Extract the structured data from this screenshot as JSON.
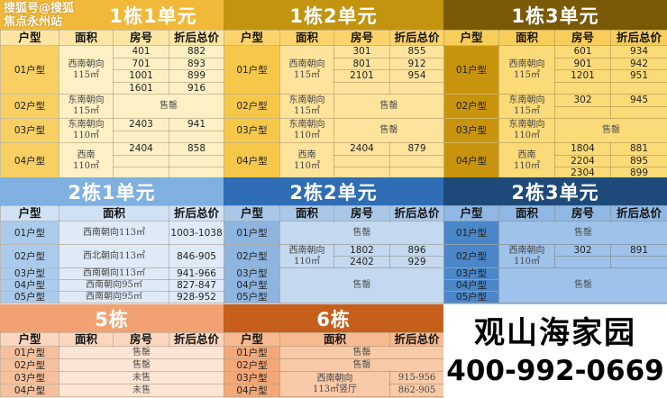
{
  "watermark": "搜狐号@搜狐焦点永州站",
  "brand": {
    "name": "观山海家园",
    "phone": "400-992-0669"
  },
  "panels": [
    {
      "title": "1栋1单元",
      "colors": {
        "title": "#f0b93a",
        "head": "#fce6a4",
        "type": "#f7cf63",
        "body": "#fdf0c4"
      },
      "headers": [
        "户型",
        "面积",
        "房号",
        "折后总价"
      ],
      "groups": [
        {
          "type": "01户型",
          "area": "西南朝向\n115㎡",
          "rooms": [
            [
              "401",
              "882"
            ],
            [
              "701",
              "893"
            ],
            [
              "1001",
              "899"
            ],
            [
              "1601",
              "916"
            ]
          ]
        },
        {
          "type": "02户型",
          "area": "东南朝向\n115㎡",
          "status": "售罄"
        },
        {
          "type": "03户型",
          "area": "东南朝向\n110㎡",
          "rooms": [
            [
              "2403",
              "941"
            ]
          ]
        },
        {
          "type": "04户型",
          "area": "西南\n110㎡",
          "rooms": [
            [
              "2404",
              "858"
            ]
          ]
        }
      ]
    },
    {
      "title": "1栋2单元",
      "colors": {
        "title": "#c39410",
        "head": "#fbd36b",
        "type": "#f6c84a",
        "body": "#fde39c"
      },
      "headers": [
        "户型",
        "面积",
        "房号",
        "折后总价"
      ],
      "groups": [
        {
          "type": "01户型",
          "area": "西南朝向\n115㎡",
          "rooms": [
            [
              "301",
              "855"
            ],
            [
              "801",
              "912"
            ],
            [
              "2101",
              "954"
            ]
          ]
        },
        {
          "type": "02户型",
          "area": "东南朝向\n115㎡",
          "status": "售罄"
        },
        {
          "type": "03户型",
          "area": "东南朝向\n110㎡",
          "status": "售罄"
        },
        {
          "type": "04户型",
          "area": "西南\n110㎡",
          "rooms": [
            [
              "2404",
              "879"
            ]
          ]
        }
      ]
    },
    {
      "title": "1栋3单元",
      "colors": {
        "title": "#7a5907",
        "head": "#f7cd5b",
        "type": "#c8940e",
        "body": "#fbda78"
      },
      "headers": [
        "户型",
        "面积",
        "房号",
        "折后总价"
      ],
      "groups": [
        {
          "type": "01户型",
          "area": "西南朝向\n115㎡",
          "rooms": [
            [
              "601",
              "934"
            ],
            [
              "901",
              "942"
            ],
            [
              "1201",
              "951"
            ]
          ]
        },
        {
          "type": "02户型",
          "area": "东南朝向\n115㎡",
          "rooms": [
            [
              "302",
              "945"
            ]
          ]
        },
        {
          "type": "03户型",
          "area": "东南朝向\n110㎡",
          "status": "售罄"
        },
        {
          "type": "04户型",
          "area": "西南\n110㎡",
          "rooms": [
            [
              "1804",
              "881"
            ],
            [
              "2204",
              "895"
            ],
            [
              "2304",
              "899"
            ]
          ]
        }
      ]
    },
    {
      "title": "2栋1单元",
      "colors": {
        "title": "#80b0e0",
        "head": "#d0e1f4",
        "type": "#abcbec",
        "body": "#dfeaf7"
      },
      "headers": [
        "户型",
        "面积",
        "折后总价"
      ],
      "groups": [
        {
          "type": "01户型",
          "area": "西南朝向113㎡",
          "price": "1003-1038"
        },
        {
          "type": "02户型",
          "area": "西北朝向113㎡",
          "price": "846-905"
        },
        {
          "type": "03户型",
          "area": "西南朝向113㎡",
          "price": "941-966"
        },
        {
          "type": "04户型",
          "area": "西南朝向95㎡",
          "price": "827-847"
        },
        {
          "type": "05户型",
          "area": "西南朝向95㎡",
          "price": "928-952"
        }
      ]
    },
    {
      "title": "2栋2单元",
      "colors": {
        "title": "#2f6db4",
        "head": "#a9c8e8",
        "type": "#8db5e0",
        "body": "#c4d9ef"
      },
      "headers": [
        "户型",
        "面积",
        "房号",
        "折后总价"
      ],
      "groups": [
        {
          "type": "01户型",
          "status": "售罄"
        },
        {
          "type": "02户型",
          "area": "西南朝向\n110㎡",
          "rooms": [
            [
              "1802",
              "896"
            ],
            [
              "2402",
              "929"
            ]
          ]
        },
        {
          "types": [
            "03户型",
            "04户型",
            "05户型"
          ],
          "status": "售罄"
        }
      ]
    },
    {
      "title": "2栋3单元",
      "colors": {
        "title": "#1e4a7a",
        "head": "#8fb8e4",
        "type": "#4a86c8",
        "body": "#9ec2e9"
      },
      "headers": [
        "户型",
        "面积",
        "房号",
        "折后总价"
      ],
      "groups": [
        {
          "type": "01户型",
          "status": "售罄"
        },
        {
          "type": "02户型",
          "area": "西南朝向\n110㎡",
          "rooms": [
            [
              "302",
              "891"
            ]
          ]
        },
        {
          "types": [
            "03户型",
            "04户型",
            "05户型"
          ],
          "status": "售罄"
        }
      ]
    },
    {
      "title": "5栋",
      "colors": {
        "title": "#f2a272",
        "head": "#fbd6be",
        "type": "#f6c09d",
        "body": "#fde5d5"
      },
      "headers": [
        "户型",
        "面积",
        "房号",
        "折后总价"
      ],
      "groups": [
        {
          "type": "01户型",
          "status": "售罄"
        },
        {
          "type": "02户型",
          "status": "售罄"
        },
        {
          "type": "03户型",
          "status": "未售"
        },
        {
          "type": "04户型",
          "status": "未售"
        }
      ]
    },
    {
      "title": "6栋",
      "colors": {
        "title": "#c65e1c",
        "head": "#f7ba90",
        "type": "#f4a878",
        "body": "#f9caa8"
      },
      "headers": [
        "户型",
        "面积",
        "折后总价"
      ],
      "groups": [
        {
          "type": "01户型",
          "status": "售罄"
        },
        {
          "type": "02户型",
          "status": "售罄"
        },
        {
          "types": [
            "03户型",
            "04户型"
          ],
          "area": "西南朝向\n113㎡竖厅",
          "prices": [
            "915-956",
            "862-905"
          ]
        }
      ]
    }
  ]
}
